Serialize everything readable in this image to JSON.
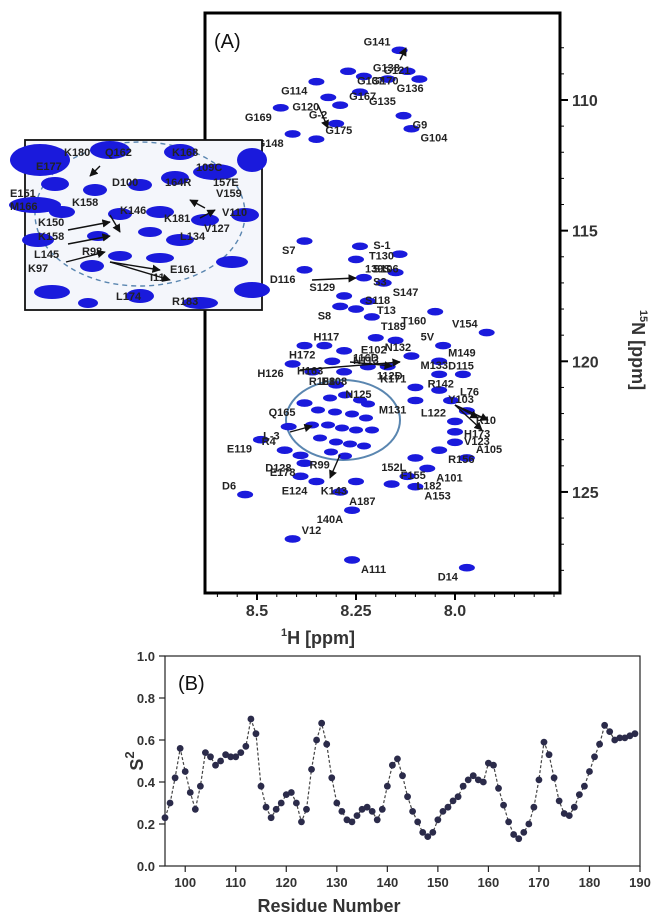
{
  "colors": {
    "peak": "#1a1adc",
    "line": "#444444",
    "marker": "#2b2b4a",
    "circle": "#5a86b0"
  },
  "chart_data": [
    {
      "type": "scatter",
      "panel_label": "(A)",
      "xlabel": "1H [ppm]",
      "ylabel": "15N [ppm]",
      "x_ticks": [
        "8.5",
        "8.25",
        "8.0"
      ],
      "y_ticks": [
        "110",
        "115",
        "120",
        "125"
      ],
      "x_reversed": true,
      "y_reversed": true,
      "assignments": [
        {
          "label": "G141",
          "x": 8.14,
          "y": 108.1
        },
        {
          "label": "G137",
          "x": 8.27,
          "y": 108.9
        },
        {
          "label": "G170",
          "x": 8.12,
          "y": 108.9
        },
        {
          "label": "G138",
          "x": 8.23,
          "y": 109.1
        },
        {
          "label": "G114",
          "x": 8.35,
          "y": 109.3
        },
        {
          "label": "G136",
          "x": 8.17,
          "y": 109.2
        },
        {
          "label": "G121",
          "x": 8.09,
          "y": 109.2
        },
        {
          "label": "G135",
          "x": 8.24,
          "y": 109.7
        },
        {
          "label": "G120",
          "x": 8.32,
          "y": 109.9
        },
        {
          "label": "G167",
          "x": 8.29,
          "y": 110.2
        },
        {
          "label": "G169",
          "x": 8.44,
          "y": 110.3
        },
        {
          "label": "G9",
          "x": 8.13,
          "y": 110.6
        },
        {
          "label": "G-2",
          "x": 8.3,
          "y": 110.9
        },
        {
          "label": "G104",
          "x": 8.11,
          "y": 111.1
        },
        {
          "label": "G148",
          "x": 8.41,
          "y": 111.3
        },
        {
          "label": "G175",
          "x": 8.35,
          "y": 111.5
        },
        {
          "label": "S7",
          "x": 8.38,
          "y": 115.4
        },
        {
          "label": "T130",
          "x": 8.24,
          "y": 115.6
        },
        {
          "label": "S-1",
          "x": 8.14,
          "y": 115.9
        },
        {
          "label": "139S",
          "x": 8.25,
          "y": 116.1
        },
        {
          "label": "D116",
          "x": 8.38,
          "y": 116.5
        },
        {
          "label": "S106",
          "x": 8.23,
          "y": 116.8
        },
        {
          "label": "S3",
          "x": 8.15,
          "y": 116.6
        },
        {
          "label": "S147",
          "x": 8.18,
          "y": 117.0
        },
        {
          "label": "S129",
          "x": 8.28,
          "y": 117.5
        },
        {
          "label": "T13",
          "x": 8.22,
          "y": 117.7
        },
        {
          "label": "S8",
          "x": 8.29,
          "y": 117.9
        },
        {
          "label": "S118",
          "x": 8.25,
          "y": 118.0
        },
        {
          "label": "T160",
          "x": 8.05,
          "y": 118.1
        },
        {
          "label": "T189",
          "x": 8.21,
          "y": 118.3
        },
        {
          "label": "V154",
          "x": 7.92,
          "y": 118.9
        },
        {
          "label": "N132",
          "x": 8.2,
          "y": 119.1
        },
        {
          "label": "E102",
          "x": 8.15,
          "y": 119.2
        },
        {
          "label": "H117",
          "x": 8.38,
          "y": 119.4
        },
        {
          "label": "H172",
          "x": 8.33,
          "y": 119.4
        },
        {
          "label": "N113",
          "x": 8.28,
          "y": 119.6
        },
        {
          "label": "5V",
          "x": 8.03,
          "y": 119.4
        },
        {
          "label": "M133",
          "x": 8.11,
          "y": 119.8
        },
        {
          "label": "H163",
          "x": 8.31,
          "y": 120.0
        },
        {
          "label": "M149",
          "x": 8.04,
          "y": 120.0
        },
        {
          "label": "H126",
          "x": 8.41,
          "y": 120.1
        },
        {
          "label": "112D",
          "x": 8.22,
          "y": 120.2
        },
        {
          "label": "116D",
          "x": 8.17,
          "y": 120.2
        },
        {
          "label": "E108",
          "x": 8.36,
          "y": 120.4
        },
        {
          "label": "R188",
          "x": 8.28,
          "y": 120.4
        },
        {
          "label": "D115",
          "x": 8.04,
          "y": 120.5
        },
        {
          "label": "R142",
          "x": 7.98,
          "y": 120.5
        },
        {
          "label": "N125",
          "x": 8.3,
          "y": 120.9
        },
        {
          "label": "K171",
          "x": 8.1,
          "y": 121.0
        },
        {
          "label": "Y103",
          "x": 8.04,
          "y": 121.1
        },
        {
          "label": "M131",
          "x": 8.1,
          "y": 121.5
        },
        {
          "label": "L76",
          "x": 8.01,
          "y": 121.5
        },
        {
          "label": "Q165",
          "x": 8.38,
          "y": 121.6
        },
        {
          "label": "R10",
          "x": 7.97,
          "y": 121.9
        },
        {
          "label": "L122",
          "x": 8.0,
          "y": 122.3
        },
        {
          "label": "V123",
          "x": 8.0,
          "y": 122.7
        },
        {
          "label": "L-3",
          "x": 8.42,
          "y": 122.5
        },
        {
          "label": "H173",
          "x": 8.0,
          "y": 123.1
        },
        {
          "label": "E119",
          "x": 8.49,
          "y": 123.0
        },
        {
          "label": "R156",
          "x": 8.04,
          "y": 123.4
        },
        {
          "label": "R4",
          "x": 8.43,
          "y": 123.4
        },
        {
          "label": "R99",
          "x": 8.39,
          "y": 123.6
        },
        {
          "label": "152L",
          "x": 8.1,
          "y": 123.7
        },
        {
          "label": "A105",
          "x": 7.97,
          "y": 123.7
        },
        {
          "label": "E178",
          "x": 8.38,
          "y": 123.9
        },
        {
          "label": "A101",
          "x": 8.07,
          "y": 124.1
        },
        {
          "label": "D128",
          "x": 8.39,
          "y": 124.4
        },
        {
          "label": "L182",
          "x": 8.12,
          "y": 124.4
        },
        {
          "label": "E124",
          "x": 8.35,
          "y": 124.6
        },
        {
          "label": "F155",
          "x": 8.16,
          "y": 124.7
        },
        {
          "label": "K143",
          "x": 8.25,
          "y": 124.6
        },
        {
          "label": "A153",
          "x": 8.1,
          "y": 124.8
        },
        {
          "label": "D6",
          "x": 8.53,
          "y": 125.1
        },
        {
          "label": "A187",
          "x": 8.29,
          "y": 125.0
        },
        {
          "label": "140A",
          "x": 8.26,
          "y": 125.7
        },
        {
          "label": "V12",
          "x": 8.41,
          "y": 126.8
        },
        {
          "label": "D14",
          "x": 7.97,
          "y": 127.9
        },
        {
          "label": "A111",
          "x": 8.26,
          "y": 127.6
        }
      ]
    },
    {
      "type": "table",
      "role": "inset zoom of crowded region",
      "labels": [
        "Q162",
        "K168",
        "K180",
        "E177",
        "109C",
        "D100",
        "164R",
        "157E",
        "V159",
        "E151",
        "M166",
        "K158",
        "K146",
        "V110",
        "K181",
        "V127",
        "K150",
        "K158",
        "L134",
        "L145",
        "R98",
        "K97",
        "E161",
        "I11",
        "L174",
        "R183"
      ]
    },
    {
      "type": "line",
      "panel_label": "(B)",
      "xlabel": "Residue Number",
      "ylabel": "S2",
      "xlim": [
        96,
        190
      ],
      "ylim": [
        0.0,
        1.0
      ],
      "x_ticks": [
        "100",
        "110",
        "120",
        "130",
        "140",
        "150",
        "160",
        "170",
        "180",
        "190"
      ],
      "y_ticks": [
        "0.0",
        "0.2",
        "0.4",
        "0.6",
        "0.8",
        "1.0"
      ],
      "x": [
        96,
        97,
        98,
        99,
        100,
        101,
        102,
        103,
        104,
        105,
        106,
        107,
        108,
        109,
        110,
        111,
        112,
        113,
        114,
        115,
        116,
        117,
        118,
        119,
        120,
        121,
        122,
        123,
        124,
        125,
        126,
        127,
        128,
        129,
        130,
        131,
        132,
        133,
        134,
        135,
        136,
        137,
        138,
        139,
        140,
        141,
        142,
        143,
        144,
        145,
        146,
        147,
        148,
        149,
        150,
        151,
        152,
        153,
        154,
        155,
        156,
        157,
        158,
        159,
        160,
        161,
        162,
        163,
        164,
        165,
        166,
        167,
        168,
        169,
        170,
        171,
        172,
        173,
        174,
        175,
        176,
        177,
        178,
        179,
        180,
        181,
        182,
        183,
        184,
        185,
        186,
        187,
        188,
        189
      ],
      "values": [
        0.23,
        0.3,
        0.42,
        0.56,
        0.45,
        0.35,
        0.27,
        0.38,
        0.54,
        0.52,
        0.48,
        0.5,
        0.53,
        0.52,
        0.52,
        0.54,
        0.57,
        0.7,
        0.63,
        0.38,
        0.28,
        0.23,
        0.27,
        0.3,
        0.34,
        0.35,
        0.3,
        0.21,
        0.27,
        0.46,
        0.6,
        0.68,
        0.58,
        0.42,
        0.3,
        0.26,
        0.22,
        0.21,
        0.24,
        0.27,
        0.28,
        0.26,
        0.22,
        0.27,
        0.38,
        0.48,
        0.51,
        0.43,
        0.33,
        0.26,
        0.21,
        0.16,
        0.14,
        0.16,
        0.22,
        0.26,
        0.28,
        0.31,
        0.33,
        0.38,
        0.41,
        0.43,
        0.41,
        0.4,
        0.49,
        0.48,
        0.37,
        0.29,
        0.21,
        0.15,
        0.13,
        0.16,
        0.2,
        0.28,
        0.41,
        0.59,
        0.53,
        0.42,
        0.31,
        0.25,
        0.24,
        0.28,
        0.34,
        0.38,
        0.45,
        0.52,
        0.58,
        0.67,
        0.64,
        0.6,
        0.61,
        0.61,
        0.62,
        0.63
      ]
    }
  ]
}
